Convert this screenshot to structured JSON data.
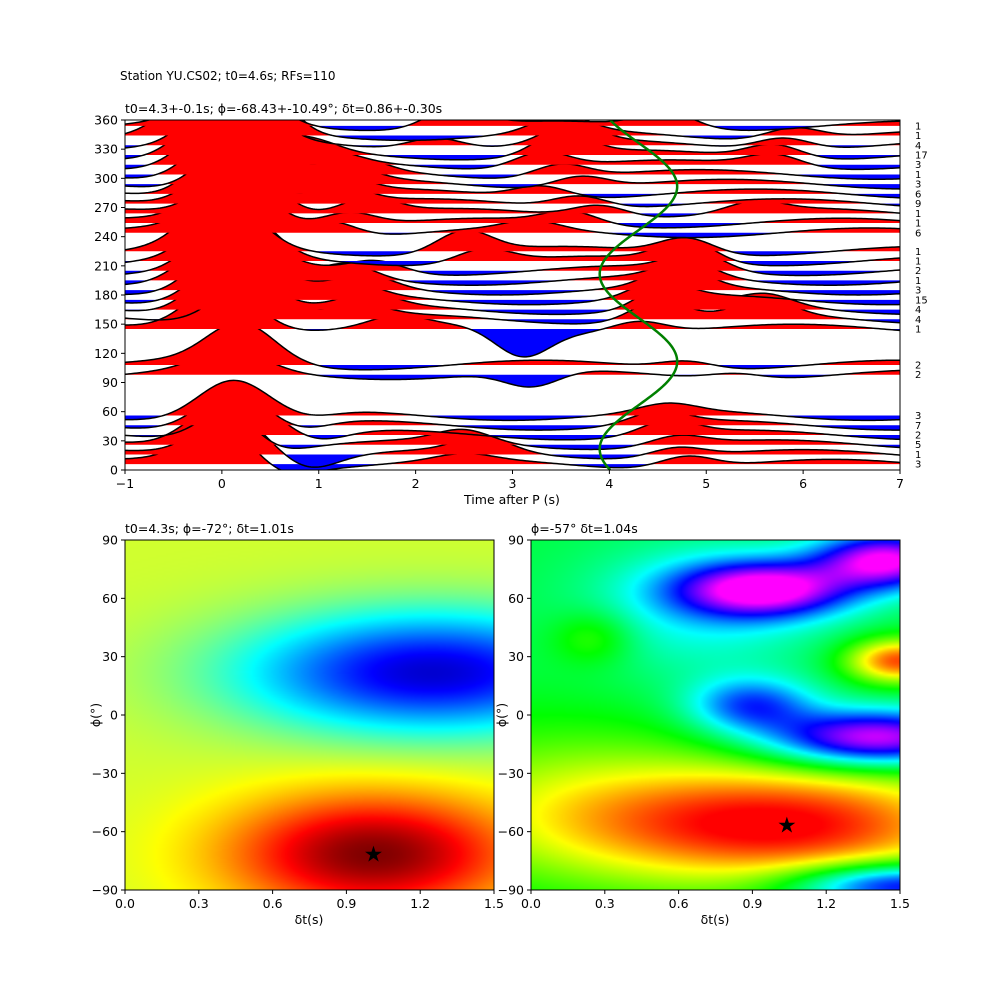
{
  "figure": {
    "suptitle": "Station YU.CS02; t0=4.6s; RFs=110"
  },
  "chart_data": [
    {
      "type": "line",
      "panel": "receiver-function-stack",
      "title": "t0=4.3+-0.1s; ϕ=-68.43+-10.49°; δt=0.86+-0.30s",
      "xlabel": "Time after P (s)",
      "ylabel": "",
      "xlim": [
        -1,
        7
      ],
      "ylim": [
        0,
        360
      ],
      "xticks": [
        -1,
        0,
        1,
        2,
        3,
        4,
        5,
        6,
        7
      ],
      "yticks": [
        0,
        30,
        60,
        90,
        120,
        150,
        180,
        210,
        240,
        270,
        300,
        330,
        360
      ],
      "positive_fill_color": "#ff0000",
      "negative_fill_color": "#0000ff",
      "trace_color": "#000000",
      "traces": [
        {
          "baz": 6,
          "count": "3",
          "peaks": [
            [
              0.0,
              1.0
            ],
            [
              0.6,
              -0.25
            ],
            [
              2.5,
              0.15
            ],
            [
              4.8,
              0.3
            ]
          ]
        },
        {
          "baz": 16,
          "count": "1",
          "peaks": [
            [
              0.1,
              1.1
            ],
            [
              0.9,
              -0.3
            ],
            [
              2.7,
              0.35
            ],
            [
              4.7,
              0.25
            ]
          ]
        },
        {
          "baz": 26,
          "count": "5",
          "peaks": [
            [
              0.0,
              1.1
            ],
            [
              0.5,
              -0.2
            ],
            [
              2.5,
              0.3
            ],
            [
              4.7,
              0.25
            ]
          ]
        },
        {
          "baz": 36,
          "count": "2",
          "peaks": [
            [
              0.2,
              1.0
            ],
            [
              1.0,
              -0.2
            ],
            [
              4.6,
              0.35
            ]
          ]
        },
        {
          "baz": 46,
          "count": "7",
          "peaks": [
            [
              0.1,
              0.9
            ],
            [
              0.8,
              -0.2
            ],
            [
              4.5,
              0.3
            ]
          ]
        },
        {
          "baz": 56,
          "count": "3",
          "peaks": [
            [
              0.1,
              0.9
            ],
            [
              0.9,
              -0.15
            ],
            [
              4.6,
              0.2
            ]
          ]
        },
        {
          "baz": 98,
          "count": "2",
          "peaks": [
            [
              0.1,
              0.5
            ],
            [
              3.2,
              -0.4
            ],
            [
              5.3,
              0.15
            ]
          ]
        },
        {
          "baz": 108,
          "count": "2",
          "peaks": [
            [
              0.2,
              1.0
            ],
            [
              4.8,
              0.2
            ]
          ]
        },
        {
          "baz": 145,
          "count": "1",
          "peaks": [
            [
              0.0,
              1.2
            ],
            [
              1.8,
              0.25
            ],
            [
              3.1,
              -0.7
            ],
            [
              4.3,
              0.3
            ]
          ]
        },
        {
          "baz": 155,
          "count": "4",
          "peaks": [
            [
              0.3,
              1.1
            ],
            [
              1.4,
              0.3
            ],
            [
              4.5,
              0.5
            ],
            [
              5.6,
              0.4
            ]
          ]
        },
        {
          "baz": 165,
          "count": "4",
          "peaks": [
            [
              0.1,
              1.4
            ],
            [
              1.5,
              0.3
            ],
            [
              4.6,
              0.6
            ],
            [
              5.6,
              0.3
            ]
          ]
        },
        {
          "baz": 175,
          "count": "15",
          "peaks": [
            [
              0.1,
              1.2
            ],
            [
              1.3,
              0.35
            ],
            [
              4.5,
              0.4
            ]
          ]
        },
        {
          "baz": 185,
          "count": "3",
          "peaks": [
            [
              0.1,
              1.3
            ],
            [
              1.5,
              0.3
            ],
            [
              4.7,
              0.5
            ]
          ]
        },
        {
          "baz": 195,
          "count": "1",
          "peaks": [
            [
              0.0,
              1.1
            ],
            [
              1.3,
              0.35
            ],
            [
              4.8,
              0.4
            ]
          ]
        },
        {
          "baz": 205,
          "count": "2",
          "peaks": [
            [
              0.1,
              1.3
            ],
            [
              1.6,
              0.3
            ],
            [
              4.9,
              0.45
            ]
          ]
        },
        {
          "baz": 215,
          "count": "1",
          "peaks": [
            [
              0.1,
              1.4
            ],
            [
              2.7,
              0.35
            ],
            [
              4.8,
              0.55
            ]
          ]
        },
        {
          "baz": 225,
          "count": "1",
          "peaks": [
            [
              0.0,
              1.3
            ],
            [
              2.5,
              0.55
            ],
            [
              4.8,
              0.4
            ]
          ]
        },
        {
          "baz": 244,
          "count": "6",
          "peaks": [
            [
              0.1,
              1.3
            ],
            [
              1.1,
              0.4
            ],
            [
              3.2,
              0.2
            ]
          ]
        },
        {
          "baz": 254,
          "count": "1",
          "peaks": [
            [
              0.1,
              1.4
            ],
            [
              1.3,
              0.35
            ],
            [
              3.6,
              0.3
            ]
          ]
        },
        {
          "baz": 264,
          "count": "1",
          "peaks": [
            [
              0.2,
              1.4
            ],
            [
              1.5,
              0.4
            ],
            [
              3.9,
              0.3
            ],
            [
              5.5,
              0.25
            ]
          ]
        },
        {
          "baz": 274,
          "count": "9",
          "peaks": [
            [
              0.1,
              1.3
            ],
            [
              1.2,
              0.45
            ],
            [
              3.7,
              0.3
            ]
          ]
        },
        {
          "baz": 284,
          "count": "6",
          "peaks": [
            [
              0.1,
              1.5
            ],
            [
              1.2,
              0.4
            ],
            [
              3.3,
              0.3
            ]
          ]
        },
        {
          "baz": 294,
          "count": "3",
          "peaks": [
            [
              0.2,
              1.4
            ],
            [
              1.3,
              0.3
            ],
            [
              3.7,
              0.3
            ]
          ]
        },
        {
          "baz": 304,
          "count": "1",
          "peaks": [
            [
              0.1,
              1.4
            ],
            [
              1.4,
              0.3
            ],
            [
              3.5,
              0.35
            ]
          ]
        },
        {
          "baz": 314,
          "count": "3",
          "peaks": [
            [
              0.0,
              1.2
            ],
            [
              1.1,
              0.25
            ],
            [
              3.3,
              0.4
            ],
            [
              5.7,
              0.3
            ]
          ]
        },
        {
          "baz": 324,
          "count": "17",
          "peaks": [
            [
              0.0,
              1.3
            ],
            [
              0.9,
              0.3
            ],
            [
              3.5,
              0.55
            ],
            [
              5.7,
              0.35
            ]
          ]
        },
        {
          "baz": 334,
          "count": "4",
          "peaks": [
            [
              0.1,
              1.5
            ],
            [
              2.2,
              0.3
            ],
            [
              3.6,
              0.45
            ],
            [
              5.8,
              0.3
            ]
          ]
        },
        {
          "baz": 344,
          "count": "1",
          "peaks": [
            [
              -0.2,
              1.0
            ],
            [
              0.4,
              1.2
            ],
            [
              3.5,
              0.4
            ],
            [
              5.9,
              0.3
            ]
          ]
        },
        {
          "baz": 354,
          "count": "1",
          "peaks": [
            [
              0.1,
              1.3
            ],
            [
              2.4,
              0.5
            ],
            [
              4.6,
              0.4
            ]
          ]
        }
      ],
      "predicted_curve": {
        "color": "#008000",
        "t0": 4.3,
        "amplitude": 0.4,
        "phase_deg": -68.43
      }
    },
    {
      "type": "heatmap",
      "panel": "energy-grid-left",
      "title": "t0=4.3s; ϕ=-72°; δt=1.01s",
      "xlabel": "δt(s)",
      "ylabel": "ϕ(°)",
      "xlim": [
        0,
        1.5
      ],
      "ylim": [
        -90,
        90
      ],
      "xticks": [
        0.0,
        0.3,
        0.6,
        0.9,
        1.2,
        1.5
      ],
      "yticks": [
        -90,
        -60,
        -30,
        0,
        30,
        60,
        90
      ],
      "colormap": "jet",
      "maximum": {
        "dt": 1.01,
        "phi": -72
      }
    },
    {
      "type": "heatmap",
      "panel": "energy-grid-right",
      "title": "ϕ=-57° δt=1.04s",
      "xlabel": "δt(s)",
      "ylabel": "ϕ(°)",
      "xlim": [
        0,
        1.5
      ],
      "ylim": [
        -90,
        90
      ],
      "xticks": [
        0.0,
        0.3,
        0.6,
        0.9,
        1.2,
        1.5
      ],
      "yticks": [
        -90,
        -60,
        -30,
        0,
        30,
        60,
        90
      ],
      "colormap": "hsv",
      "maximum": {
        "dt": 1.04,
        "phi": -57
      }
    }
  ]
}
